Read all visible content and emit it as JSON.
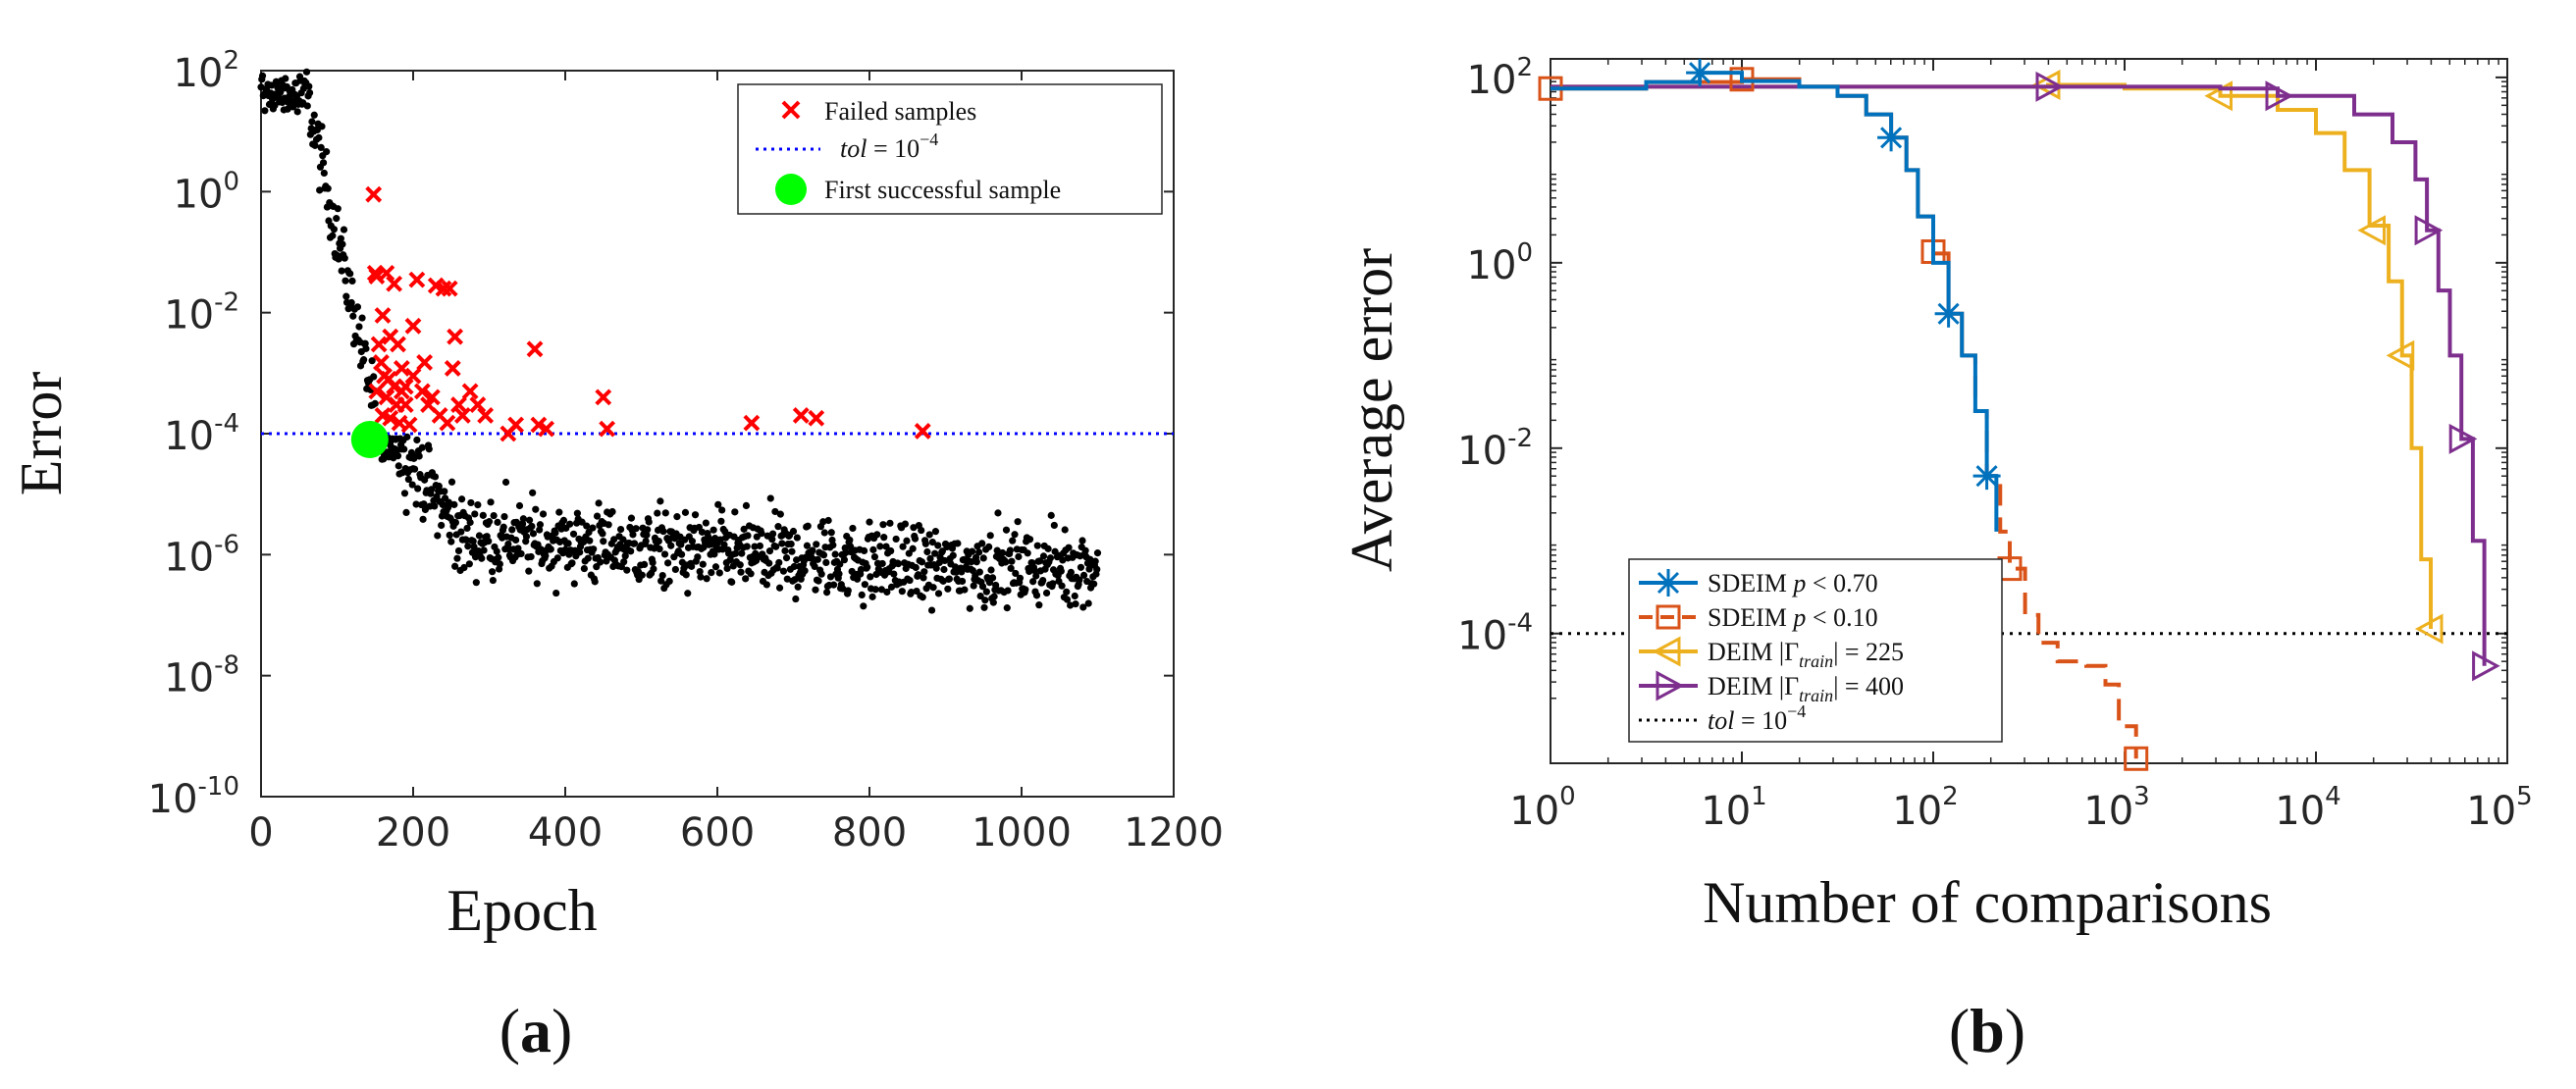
{
  "chart_data": [
    {
      "id": "a",
      "type": "scatter",
      "panel_label": "(a)",
      "panel_letter": "a",
      "xlabel": "Epoch",
      "ylabel": "Error",
      "xlim": [
        0,
        1200
      ],
      "ylim_exp": [
        -10,
        2
      ],
      "y_scale": "log",
      "xticks": [
        0,
        200,
        400,
        600,
        800,
        1000,
        1200
      ],
      "yticks_exp": [
        -10,
        -8,
        -6,
        -4,
        -2,
        0,
        2
      ],
      "legend_position": "top-right",
      "legend": [
        {
          "label": "Failed samples",
          "marker": "x",
          "color": "#ff0000"
        },
        {
          "label": "tol = 10^-4",
          "label_main": "tol",
          "label_eq": " = 10",
          "label_sup": "−4",
          "style": "dotted",
          "color": "#0000ff"
        },
        {
          "label": "First successful sample",
          "marker": "circle",
          "color": "#00ff00"
        }
      ],
      "tol_line": 0.0001,
      "first_success": {
        "epoch": 143,
        "error": 0.0001
      },
      "failed_samples": [
        [
          148,
          0.9
        ],
        [
          150,
          0.045
        ],
        [
          152,
          0.04
        ],
        [
          165,
          0.045
        ],
        [
          175,
          0.03
        ],
        [
          160,
          0.009
        ],
        [
          170,
          0.004
        ],
        [
          155,
          0.003
        ],
        [
          180,
          0.003
        ],
        [
          158,
          0.0015
        ],
        [
          162,
          0.0009
        ],
        [
          168,
          0.0008
        ],
        [
          175,
          0.0006
        ],
        [
          185,
          0.0005
        ],
        [
          152,
          0.0005
        ],
        [
          165,
          0.0004
        ],
        [
          178,
          0.0003
        ],
        [
          190,
          0.0003
        ],
        [
          160,
          0.0002
        ],
        [
          170,
          0.00018
        ],
        [
          182,
          0.00015
        ],
        [
          195,
          0.00014
        ],
        [
          190,
          0.0006
        ],
        [
          200,
          0.0009
        ],
        [
          205,
          0.035
        ],
        [
          212,
          0.0005
        ],
        [
          220,
          0.0003
        ],
        [
          225,
          0.0004
        ],
        [
          230,
          0.028
        ],
        [
          235,
          0.0002
        ],
        [
          240,
          0.025
        ],
        [
          245,
          0.00015
        ],
        [
          248,
          0.025
        ],
        [
          252,
          0.0012
        ],
        [
          255,
          0.004
        ],
        [
          260,
          0.0003
        ],
        [
          265,
          0.0002
        ],
        [
          275,
          0.0005
        ],
        [
          285,
          0.0003
        ],
        [
          295,
          0.0002
        ],
        [
          325,
          0.0001
        ],
        [
          335,
          0.00014
        ],
        [
          360,
          0.0025
        ],
        [
          365,
          0.00014
        ],
        [
          375,
          0.00012
        ],
        [
          450,
          0.0004
        ],
        [
          455,
          0.00012
        ],
        [
          645,
          0.00015
        ],
        [
          710,
          0.0002
        ],
        [
          730,
          0.00018
        ],
        [
          870,
          0.00011
        ],
        [
          200,
          0.006
        ],
        [
          215,
          0.0015
        ],
        [
          185,
          0.0012
        ]
      ],
      "successful_samples_summary": "black dots: log10(error) rising to ~2 at epoch 0-50, falling steeply through epoch 150 then a cloud between ~1e-7.5 and 1e-4.5 out to epoch 1100"
    },
    {
      "id": "b",
      "type": "line",
      "panel_label": "(b)",
      "panel_letter": "b",
      "xlabel": "Number of comparisons",
      "ylabel": "Average error",
      "x_scale": "log",
      "y_scale": "log",
      "xlim_exp": [
        0,
        5
      ],
      "ylim_exp": [
        -5.4,
        2.2
      ],
      "xticks_exp": [
        0,
        1,
        2,
        3,
        4,
        5
      ],
      "yticks_exp": [
        -4,
        -2,
        0,
        2
      ],
      "legend_position": "bottom-left",
      "tol_line": 0.0001,
      "series": [
        {
          "name": "SDEIM p < 0.70",
          "legend_main": "SDEIM ",
          "legend_var": "p",
          "legend_rest": " < 0.70",
          "color": "#0072bd",
          "style": "solid",
          "marker": "star",
          "points_log10": [
            [
              0,
              1.88
            ],
            [
              0.5,
              1.95
            ],
            [
              0.78,
              2.05
            ],
            [
              1.0,
              1.96
            ],
            [
              1.3,
              1.9
            ],
            [
              1.5,
              1.8
            ],
            [
              1.65,
              1.6
            ],
            [
              1.78,
              1.35
            ],
            [
              1.86,
              1.0
            ],
            [
              1.92,
              0.5
            ],
            [
              2.0,
              0.0
            ],
            [
              2.08,
              -0.55
            ],
            [
              2.15,
              -1.0
            ],
            [
              2.22,
              -1.6
            ],
            [
              2.28,
              -2.3
            ],
            [
              2.33,
              -2.9
            ]
          ],
          "markers_log10": [
            [
              0.78,
              2.05
            ],
            [
              1.78,
              1.35
            ],
            [
              2.08,
              -0.55
            ],
            [
              2.28,
              -2.3
            ]
          ]
        },
        {
          "name": "SDEIM p < 0.10",
          "legend_main": "SDEIM ",
          "legend_var": "p",
          "legend_rest": " < 0.10",
          "color": "#d95319",
          "style": "dashed-tail",
          "marker": "square",
          "points_log10": [
            [
              0,
              1.88
            ],
            [
              0.5,
              1.95
            ],
            [
              1.0,
              1.98
            ],
            [
              1.3,
              1.9
            ],
            [
              1.5,
              1.8
            ],
            [
              1.65,
              1.6
            ],
            [
              1.78,
              1.35
            ],
            [
              1.86,
              1.0
            ],
            [
              1.92,
              0.5
            ],
            [
              2.0,
              0.1
            ],
            [
              2.08,
              -0.55
            ],
            [
              2.15,
              -1.0
            ],
            [
              2.22,
              -1.6
            ],
            [
              2.28,
              -2.3
            ],
            [
              2.35,
              -2.9
            ],
            [
              2.4,
              -3.3
            ],
            [
              2.48,
              -3.8
            ],
            [
              2.55,
              -4.1
            ],
            [
              2.65,
              -4.3
            ],
            [
              2.8,
              -4.35
            ],
            [
              2.9,
              -4.55
            ],
            [
              2.97,
              -5.0
            ],
            [
              3.06,
              -5.35
            ]
          ],
          "markers_log10": [
            [
              0,
              1.88
            ],
            [
              1.0,
              1.98
            ],
            [
              2.0,
              0.12
            ],
            [
              2.4,
              -3.3
            ],
            [
              3.06,
              -5.35
            ]
          ]
        },
        {
          "name": "DEIM |Γtrain| = 225",
          "legend_main": "DEIM |Γ",
          "legend_sub": "train",
          "legend_rest": "| = 225",
          "color": "#edb120",
          "style": "solid",
          "marker": "triangle-left",
          "points_log10": [
            [
              0,
              1.9
            ],
            [
              2.6,
              1.92
            ],
            [
              3.0,
              1.88
            ],
            [
              3.5,
              1.8
            ],
            [
              3.8,
              1.65
            ],
            [
              4.0,
              1.4
            ],
            [
              4.15,
              1.0
            ],
            [
              4.28,
              0.4
            ],
            [
              4.38,
              -0.2
            ],
            [
              4.45,
              -1.0
            ],
            [
              4.5,
              -2.0
            ],
            [
              4.55,
              -3.2
            ],
            [
              4.6,
              -3.95
            ]
          ],
          "markers_log10": [
            [
              2.6,
              1.92
            ],
            [
              3.5,
              1.8
            ],
            [
              4.3,
              0.35
            ],
            [
              4.45,
              -1.0
            ],
            [
              4.6,
              -3.95
            ]
          ]
        },
        {
          "name": "DEIM |Γtrain| = 400",
          "legend_main": "DEIM |Γ",
          "legend_sub": "train",
          "legend_rest": "| = 400",
          "color": "#7e2f8e",
          "style": "solid",
          "marker": "triangle-right",
          "points_log10": [
            [
              0,
              1.9
            ],
            [
              2.6,
              1.9
            ],
            [
              3.5,
              1.88
            ],
            [
              3.8,
              1.8
            ],
            [
              4.2,
              1.6
            ],
            [
              4.4,
              1.3
            ],
            [
              4.52,
              0.9
            ],
            [
              4.58,
              0.35
            ],
            [
              4.64,
              -0.3
            ],
            [
              4.7,
              -1.0
            ],
            [
              4.76,
              -1.9
            ],
            [
              4.82,
              -3.0
            ],
            [
              4.88,
              -4.35
            ]
          ],
          "markers_log10": [
            [
              2.6,
              1.9
            ],
            [
              3.8,
              1.8
            ],
            [
              4.58,
              0.35
            ],
            [
              4.76,
              -1.9
            ],
            [
              4.88,
              -4.35
            ]
          ]
        }
      ],
      "tol_legend": {
        "label": "tol = 10^-4",
        "label_main": "tol",
        "label_eq": " = 10",
        "label_sup": "−4",
        "color": "#000000",
        "style": "dotted"
      }
    }
  ]
}
